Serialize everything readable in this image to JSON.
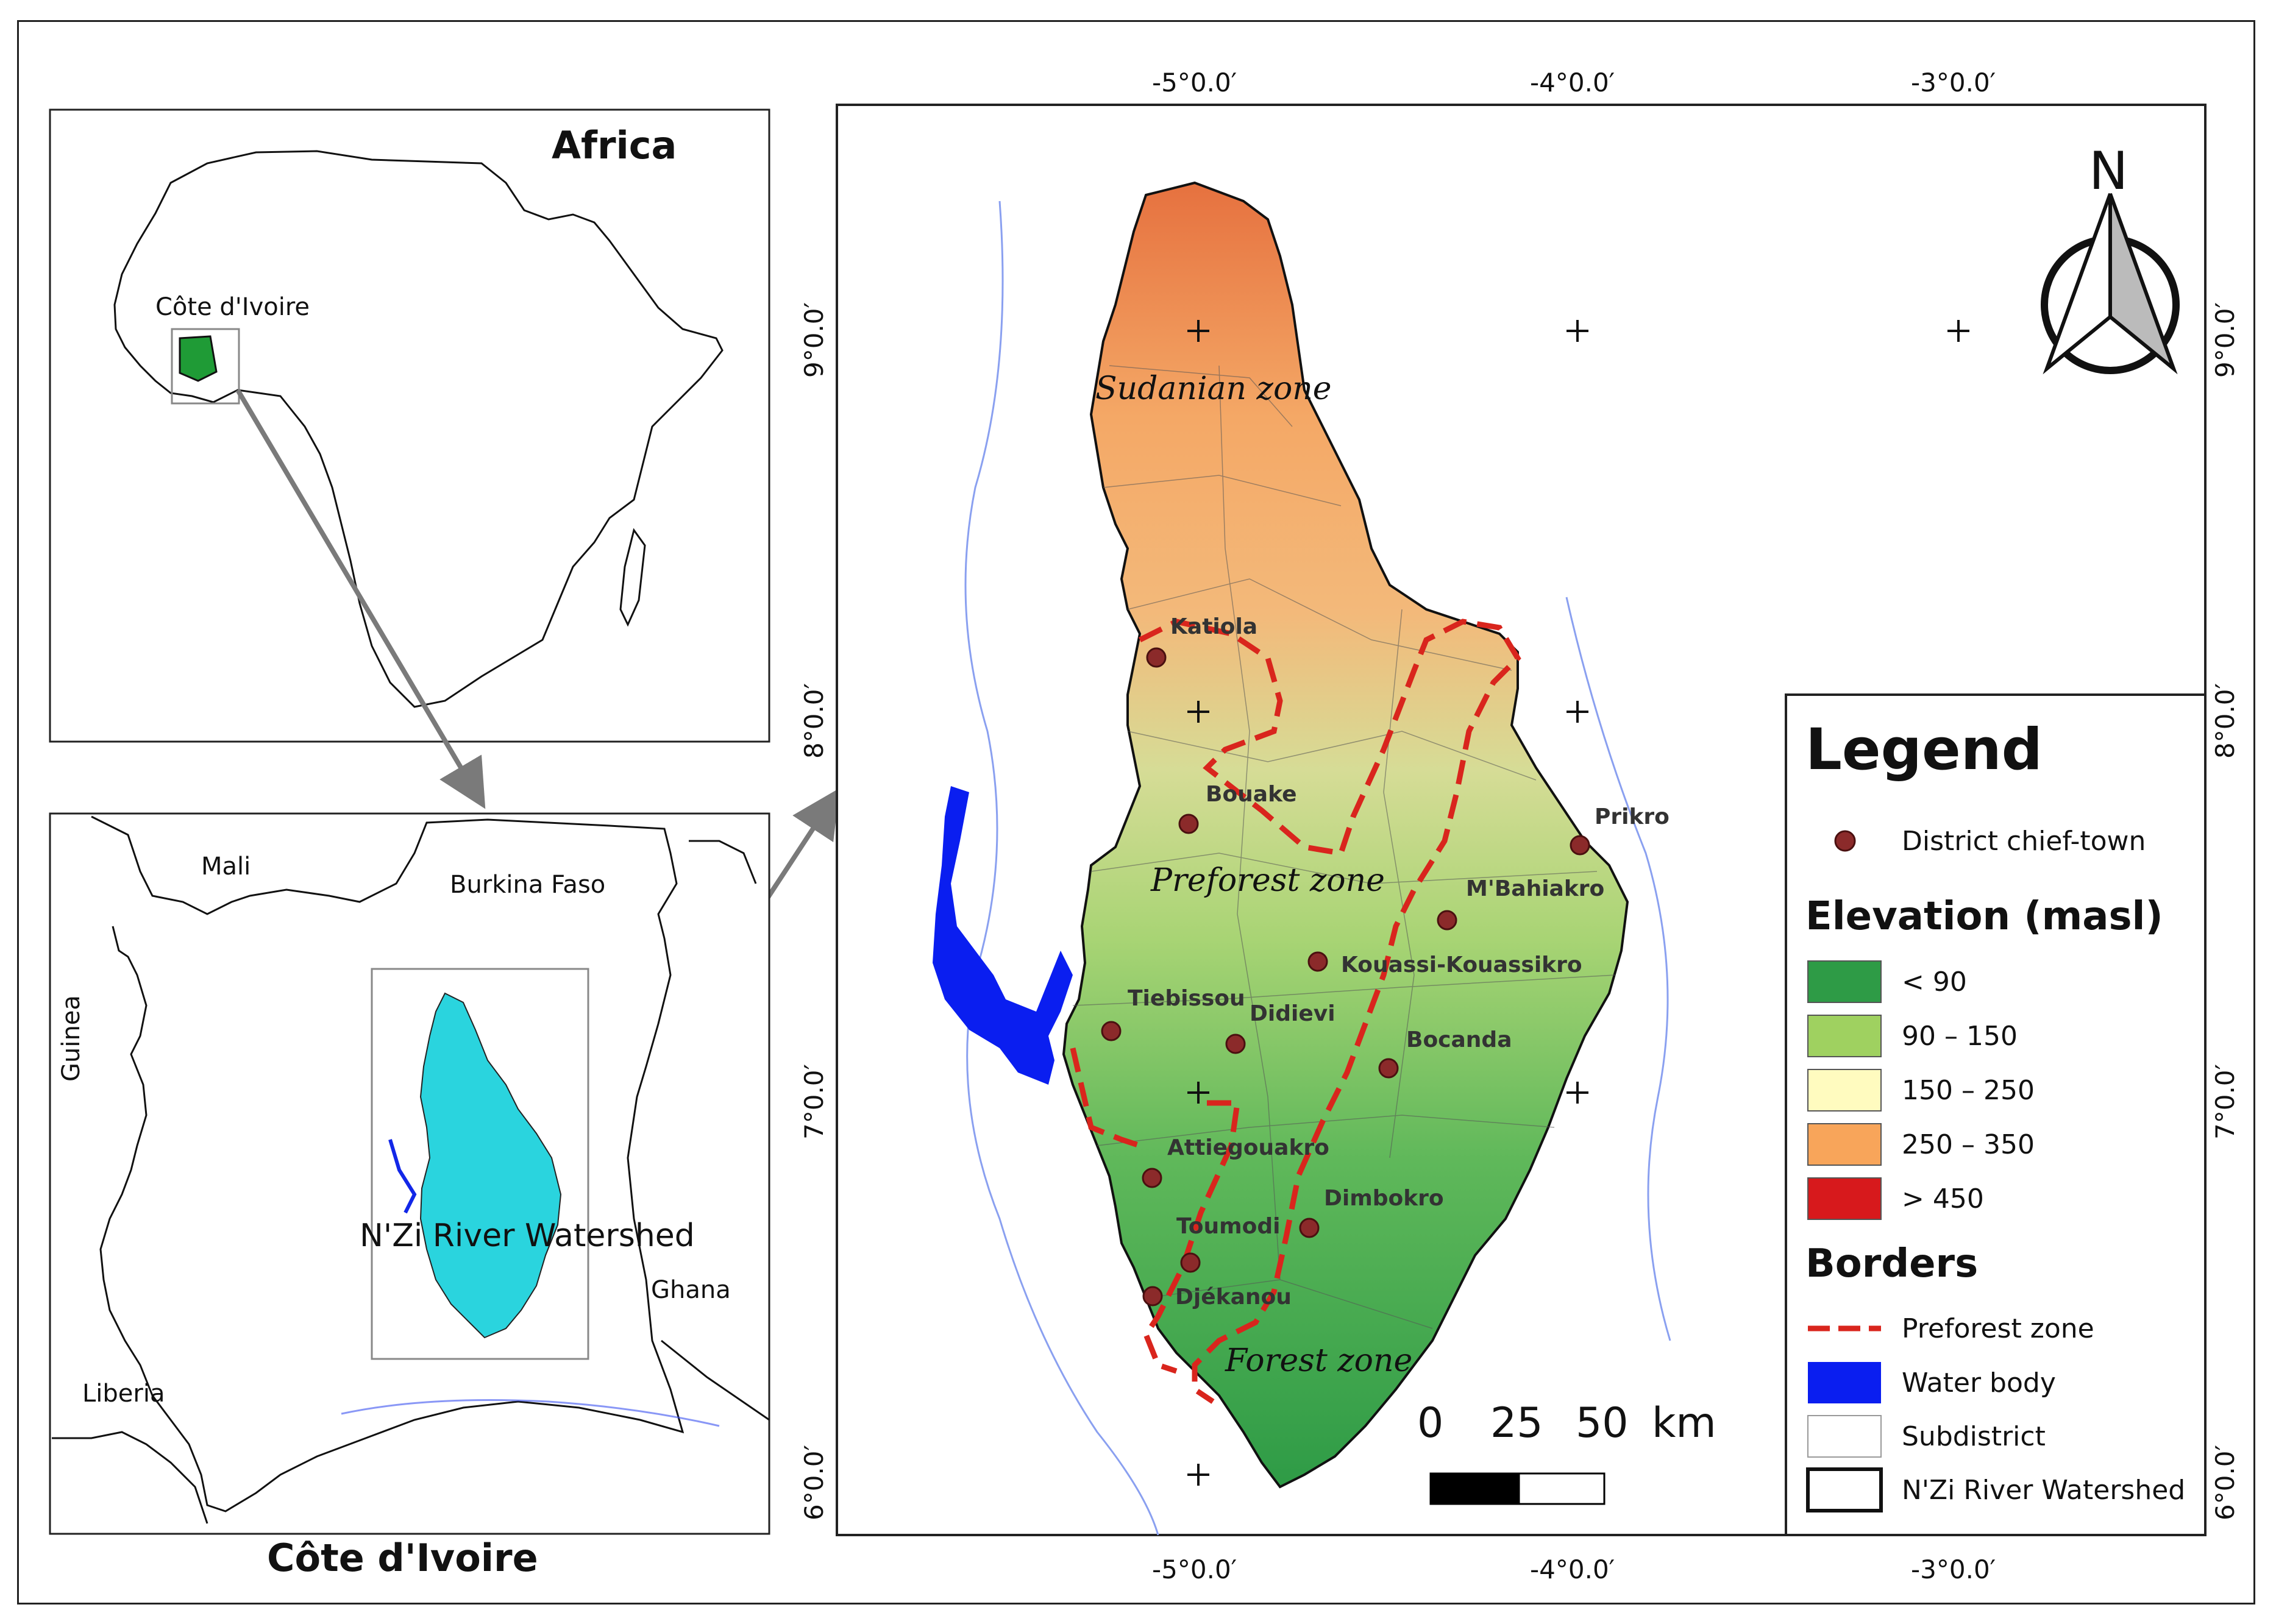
{
  "africa_map": {
    "title": "Africa",
    "country_label": "Côte d'Ivoire"
  },
  "civ_map": {
    "title": "Côte d'Ivoire",
    "neighbors": [
      "Mali",
      "Burkina Faso",
      "Guinea",
      "Ghana",
      "Liberia"
    ],
    "watershed_label": "N'Zi River Watershed"
  },
  "main_map": {
    "graticule": {
      "top": [
        "-5°0.0′",
        "-4°0.0′",
        "-3°0.0′"
      ],
      "bottom": [
        "-5°0.0′",
        "-4°0.0′",
        "-3°0.0′"
      ],
      "left": [
        "9°0.0′",
        "8°0.0′",
        "7°0.0′",
        "6°0.0′"
      ],
      "right": [
        "9°0.0′",
        "8°0.0′",
        "7°0.0′",
        "6°0.0′"
      ]
    },
    "zones": [
      "Sudanian zone",
      "Preforest zone",
      "Forest zone"
    ],
    "towns": [
      "Katiola",
      "Bouake",
      "Prikro",
      "M'Bahiakro",
      "Kouassi-Kouassikro",
      "Tiebissou",
      "Didievi",
      "Bocanda",
      "Attiegouakro",
      "Dimbokro",
      "Toumodi",
      "Djékanou"
    ],
    "north_label": "N",
    "scale": {
      "labels": [
        "0",
        "25",
        "50"
      ],
      "unit": "km"
    }
  },
  "legend": {
    "title": "Legend",
    "district_label": "District chief-town",
    "elevation_title": "Elevation (masl)",
    "elevation_classes": [
      {
        "label": "< 90",
        "color": "#2e9b46"
      },
      {
        "label": "90 – 150",
        "color": "#9fd160"
      },
      {
        "label": "150 – 250",
        "color": "#fffbbf"
      },
      {
        "label": "250 – 350",
        "color": "#f8a55a"
      },
      {
        "label": "> 450",
        "color": "#d7191c"
      }
    ],
    "borders_title": "Borders",
    "border_items": [
      "Preforest zone",
      "Water body",
      "Subdistrict",
      "N'Zi River Watershed"
    ],
    "colors": {
      "preforest": "#d9251d",
      "water": "#0a1ef0",
      "watershed_fill": "#2ad4de"
    }
  }
}
